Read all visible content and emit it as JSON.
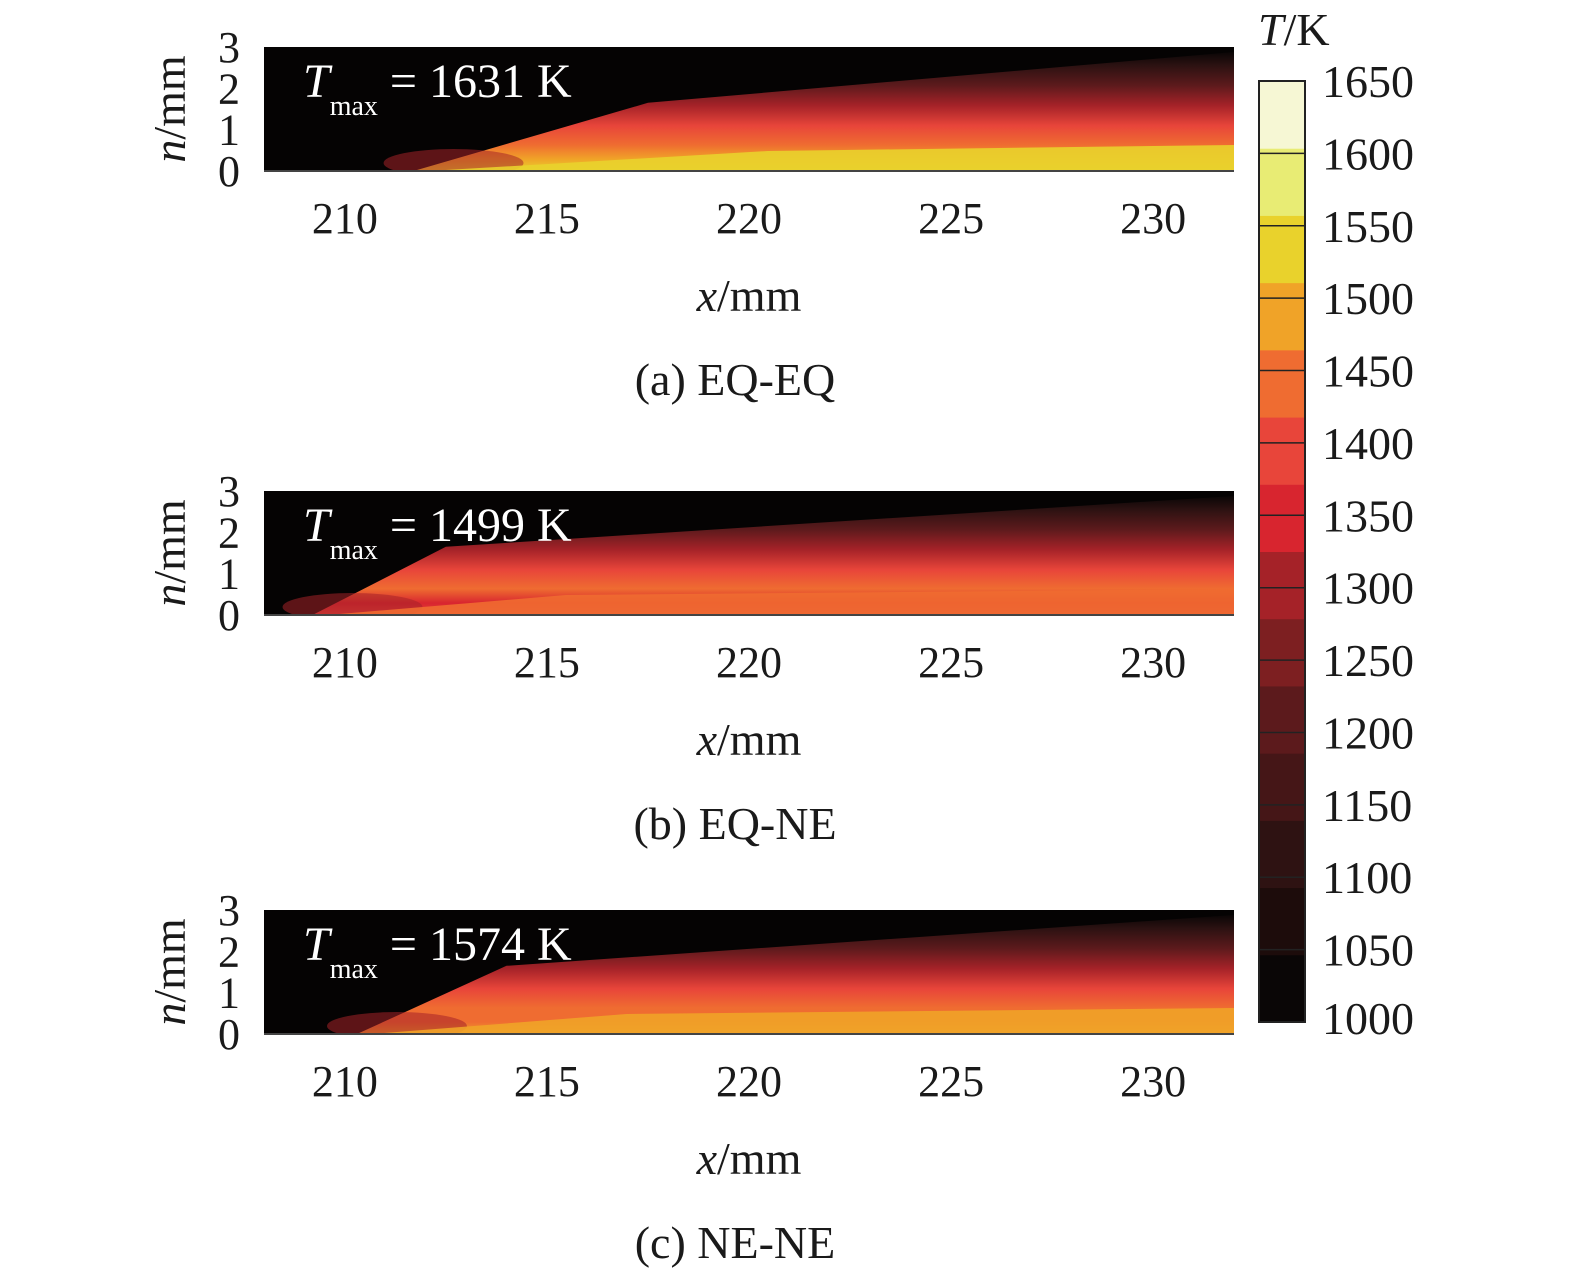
{
  "chart_data": {
    "type": "heatmap",
    "shared_x_axis": {
      "label_var": "x",
      "label_unit": "/mm",
      "range": [
        208,
        232
      ],
      "ticks": [
        "210",
        "215",
        "220",
        "225",
        "230"
      ]
    },
    "shared_y_axis": {
      "label_var": "n",
      "label_unit": "/mm",
      "range": [
        0,
        3
      ],
      "ticks": [
        "0",
        "1",
        "2",
        "3"
      ]
    },
    "panels": [
      {
        "caption": "(a) EQ-EQ",
        "annotation_symbol": "T",
        "annotation_subscript": "max",
        "annotation_value": " = 1631 K",
        "tmax": 1631,
        "ignition_x": 211.7,
        "flame_x_end": 217.5
      },
      {
        "caption": "(b) EQ-NE",
        "annotation_symbol": "T",
        "annotation_subscript": "max",
        "annotation_value": " = 1499 K",
        "tmax": 1499,
        "ignition_x": 209.2,
        "flame_x_end": 212.5
      },
      {
        "caption": "(c) NE-NE",
        "annotation_symbol": "T",
        "annotation_subscript": "max",
        "annotation_value": " = 1574 K",
        "tmax": 1574,
        "ignition_x": 210.3,
        "flame_x_end": 214.0
      }
    ],
    "colorbar": {
      "title_var": "T",
      "title_unit": "/K",
      "min": 1000,
      "max": 1650,
      "step": 50,
      "ticks": [
        "1000",
        "1050",
        "1100",
        "1150",
        "1200",
        "1250",
        "1300",
        "1350",
        "1400",
        "1450",
        "1500",
        "1550",
        "1600",
        "1650"
      ],
      "colors": [
        "#0a0606",
        "#1d0c0b",
        "#2e1212",
        "#451617",
        "#5c1a1c",
        "#7d1f21",
        "#a52228",
        "#d8252f",
        "#e8453a",
        "#ef6c31",
        "#f0a328",
        "#e9d22c",
        "#e8ec74",
        "#f6f7d4"
      ]
    }
  }
}
